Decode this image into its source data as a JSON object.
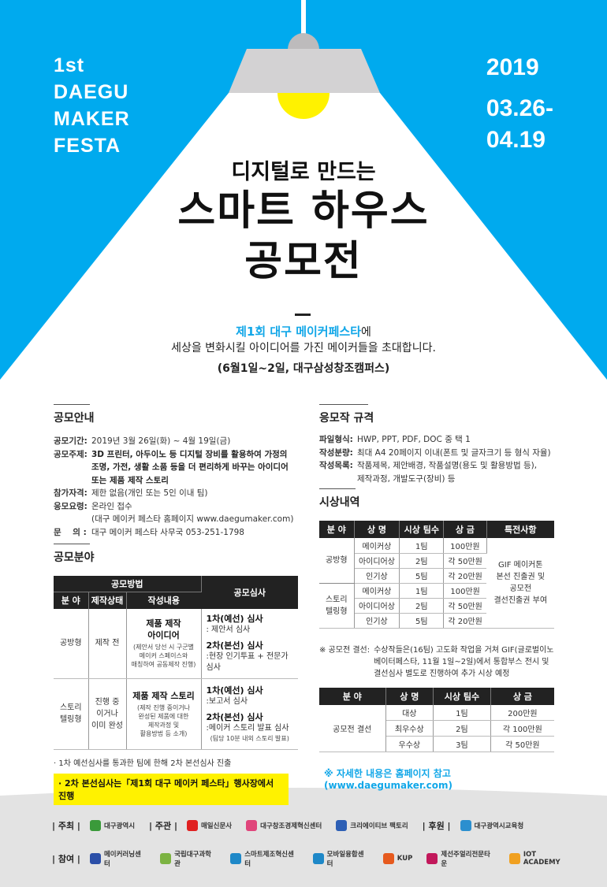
{
  "colors": {
    "brand_blue": "#00aaee",
    "bulb_yellow": "#fff200",
    "shade_gray": "#d3d2d3",
    "highlight_yellow": "#fff200",
    "footer_gray": "#e3e3e3"
  },
  "header": {
    "festa_lines": [
      "1st",
      "DAEGU",
      "MAKER",
      "FESTA"
    ],
    "year": "2019",
    "date_lines": [
      "03.26-",
      "04.19"
    ],
    "subtitle": "디지털로 만드는",
    "title_lines": [
      "스마트 하우스",
      "공모전"
    ],
    "intro_blue": "제1회 대구 메이커페스타",
    "intro_suffix": "에",
    "intro_line2": "세상을 변화시킬 아이디어를 가진 메이커들을 초대합니다.",
    "intro_location": "(6월1일~2일, 대구삼성창조캠퍼스)"
  },
  "guide": {
    "title": "공모안내",
    "rows": [
      {
        "k": "공모기간:",
        "v": [
          "2019년 3월 26일(화) ~ 4월 19일(금)"
        ],
        "bold": false
      },
      {
        "k": "공모주제:",
        "v": [
          "3D 프린터, 아두이노 등 디지털 장비를 활용하여 가정의",
          "조명, 가전, 생활 소품 등을 더 편리하게 바꾸는 아이디어",
          "또는 제품 제작 스토리"
        ],
        "bold": true
      },
      {
        "k": "참가자격:",
        "v": [
          "제한 없음(개인 또는 5인 이내 팀)"
        ],
        "bold": false
      },
      {
        "k": "응모요령:",
        "v": [
          "온라인 접수",
          "(대구 메이커 페스타 홈페이지 www.daegumaker.com)"
        ],
        "bold": false
      },
      {
        "k": "문    의 :",
        "v": [
          "대구 메이커 페스타 사무국 053-251-1798"
        ],
        "bold": false
      }
    ]
  },
  "category": {
    "title": "공모분야",
    "head_method": "공모방법",
    "head_judge": "공모심사",
    "head_cols": [
      "분 야",
      "제작상태",
      "작성내용"
    ],
    "rows": [
      {
        "field": "공방형",
        "status": "제작 전",
        "content_title": "제품 제작\n아이디어",
        "content_note": "(제안서 당선 시 구군별\n메이커 스페이스와\n매칭하여 공동제작 진행)",
        "judge1": "1차(예선) 심사",
        "judge1_desc": ": 제안서 심사",
        "judge2": "2차(본선) 심사",
        "judge2_desc": ":현장 인기투표 + 전문가 심사",
        "judge2_note": ""
      },
      {
        "field": "스토리\n텔링형",
        "status": "진행 중\n이거나\n이미 완성",
        "content_title": "제품 제작 스토리",
        "content_note": "(제작 진행 중이거나\n완성된 제품에 대한\n제작과정 및\n활용방법 등 소개)",
        "judge1": "1차(예선) 심사",
        "judge1_desc": ":보고서 심사",
        "judge2": "2차(본선) 심사",
        "judge2_desc": ":메이커 스토리 발표 심사",
        "judge2_note": "(팀당 10분 내외 스토리 발표)"
      }
    ],
    "note1": "· 1차 예선심사를 통과한 팀에 한해 2차 본선심사 진출",
    "note2": "· 2차 본선심사는「제1회 대구 메이커 페스타」행사장에서 진행"
  },
  "spec": {
    "title": "응모작 규격",
    "rows": [
      {
        "k": "파일형식:",
        "v": [
          "HWP, PPT, PDF, DOC 중 택 1"
        ]
      },
      {
        "k": "작성분량:",
        "v": [
          "최대 A4 20페이지 이내(폰트 및 글자크기 등 형식 자율)"
        ]
      },
      {
        "k": "작성목록:",
        "v": [
          "작품제목, 제안배경, 작품설명(용도 및 활용방법 등),",
          "제작과정, 개발도구(장비) 등"
        ]
      }
    ]
  },
  "awards": {
    "title": "시상내역",
    "headers": [
      "분 야",
      "상 명",
      "시상 팀수",
      "상 금",
      "특전사항"
    ],
    "groups": [
      {
        "field": "공방형",
        "rows": [
          [
            "메이커상",
            "1팀",
            "100만원"
          ],
          [
            "아이디어상",
            "2팀",
            "각 50만원"
          ],
          [
            "인기상",
            "5팀",
            "각 20만원"
          ]
        ]
      },
      {
        "field": "스토리\n텔링형",
        "rows": [
          [
            "메이커상",
            "1팀",
            "100만원"
          ],
          [
            "아이디어상",
            "2팀",
            "각 50만원"
          ],
          [
            "인기상",
            "5팀",
            "각 20만원"
          ]
        ]
      }
    ],
    "benefit": "GIF 메이커톤\n본선 진출권 및\n공모전\n결선진출권 부여",
    "final_note_label": "※ 공모전 결선:",
    "final_note": "수상작들은(16팀) 고도화 작업을 거쳐 GIF(글로벌이노\n베이터페스타, 11월 1일~2일)에서 통합부스 전시 및\n결선심사 별도로 진행하여 추가 시상 예정",
    "final_headers": [
      "분 야",
      "상 명",
      "시상 팀수",
      "상 금"
    ],
    "final_field": "공모전 결선",
    "final_rows": [
      [
        "대상",
        "1팀",
        "200만원"
      ],
      [
        "최우수상",
        "2팀",
        "각 100만원"
      ],
      [
        "우수상",
        "3팀",
        "각 50만원"
      ]
    ],
    "homepage_note": "※ 자세한 내용은 홈페이지 참고 (www.daegumaker.com)"
  },
  "footer": {
    "row1": [
      {
        "role": "| 주최 |",
        "logos": [
          {
            "name": "대구광역시",
            "color": "#3a9a3a"
          }
        ]
      },
      {
        "role": "| 주관 |",
        "logos": [
          {
            "name": "매일신문사",
            "color": "#e02020"
          },
          {
            "name": "대구창조경제혁신센터",
            "color": "#e0457b"
          },
          {
            "name": "크리에이티브 팩토리",
            "color": "#2d5fb5"
          }
        ]
      },
      {
        "role": "| 후원 |",
        "logos": [
          {
            "name": "대구광역시교육청",
            "color": "#2b8fcf"
          }
        ]
      }
    ],
    "row2": [
      {
        "role": "| 참여 |",
        "logos": [
          {
            "name": "메이커러닝센터",
            "color": "#2b4fa8"
          },
          {
            "name": "국립대구과학관",
            "color": "#7cb342"
          },
          {
            "name": "스마트제조혁신센터",
            "color": "#1e88c8"
          },
          {
            "name": "모바일융합센터",
            "color": "#1e88c8"
          },
          {
            "name": "KUP",
            "color": "#e65a1e"
          },
          {
            "name": "제선주얼리전문타운",
            "color": "#c2185b"
          },
          {
            "name": "IOT ACADEMY",
            "color": "#f0a020"
          }
        ]
      }
    ]
  }
}
